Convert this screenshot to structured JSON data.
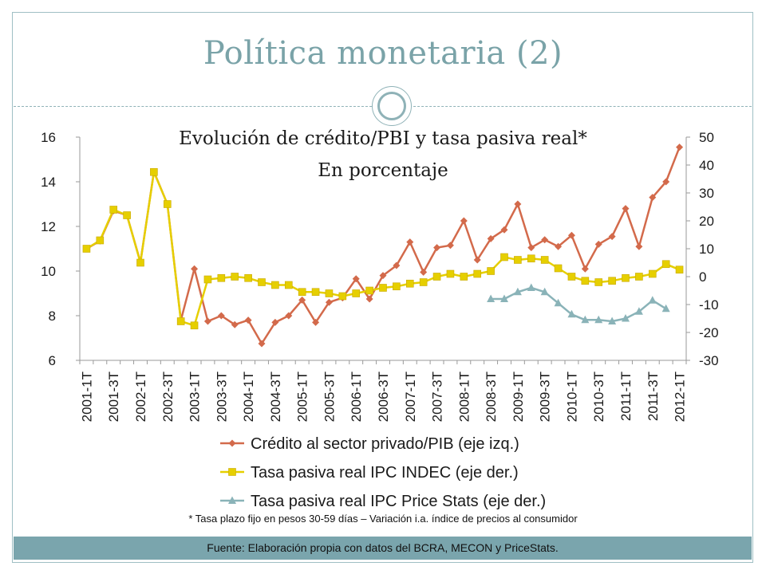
{
  "slide": {
    "title": "Política monetaria (2)",
    "footnote": "* Tasa plazo fijo en pesos 30-59 días – Variación i.a. índice de precios al consumidor",
    "source": "Fuente: Elaboración propia con datos del BCRA, MECON y PriceStats."
  },
  "colors": {
    "credit": "#d36a4b",
    "indec": "#e6cf00",
    "pricestats": "#8ab3b8",
    "accent": "#7aa5ad"
  },
  "chart_data": {
    "type": "line",
    "title": "Evolución de crédito/PBI y tasa pasiva real*",
    "subtitle": "En porcentaje",
    "x": [
      "2001-1T",
      "2001-2T",
      "2001-3T",
      "2001-4T",
      "2002-1T",
      "2002-2T",
      "2002-3T",
      "2002-4T",
      "2003-1T",
      "2003-2T",
      "2003-3T",
      "2003-4T",
      "2004-1T",
      "2004-2T",
      "2004-3T",
      "2004-4T",
      "2005-1T",
      "2005-2T",
      "2005-3T",
      "2005-4T",
      "2006-1T",
      "2006-2T",
      "2006-3T",
      "2006-4T",
      "2007-1T",
      "2007-2T",
      "2007-3T",
      "2007-4T",
      "2008-1T",
      "2008-2T",
      "2008-3T",
      "2008-4T",
      "2009-1T",
      "2009-2T",
      "2009-3T",
      "2009-4T",
      "2010-1T",
      "2010-2T",
      "2010-3T",
      "2010-4T",
      "2011-1T",
      "2011-2T",
      "2011-3T",
      "2011-4T",
      "2012-1T"
    ],
    "x_tick_labels": [
      "2001-1T",
      "2001-3T",
      "2002-1T",
      "2002-3T",
      "2003-1T",
      "2003-3T",
      "2004-1T",
      "2004-3T",
      "2005-1T",
      "2005-3T",
      "2006-1T",
      "2006-3T",
      "2007-1T",
      "2007-3T",
      "2008-1T",
      "2008-3T",
      "2009-1T",
      "2009-3T",
      "2010-1T",
      "2010-3T",
      "2011-1T",
      "2011-3T",
      "2012-1T"
    ],
    "y_left": {
      "ylim": [
        6,
        16
      ],
      "ticks": [
        "6",
        "8",
        "10",
        "12",
        "14",
        "16"
      ]
    },
    "y_right": {
      "ylim": [
        -30,
        50
      ],
      "ticks": [
        "-30",
        "-20",
        "-10",
        "0",
        "10",
        "20",
        "30",
        "40",
        "50"
      ]
    },
    "series": [
      {
        "name": "Crédito al sector privado/PIB (eje izq.)",
        "axis": "left",
        "color": "#d36a4b",
        "marker": "diamond",
        "values": [
          11.0,
          11.35,
          12.7,
          12.5,
          10.4,
          14.45,
          13.0,
          7.8,
          10.1,
          7.75,
          8.0,
          7.6,
          7.8,
          6.75,
          7.7,
          8.0,
          8.7,
          7.7,
          8.6,
          8.8,
          9.65,
          8.75,
          9.8,
          10.25,
          11.3,
          9.95,
          11.05,
          11.15,
          12.25,
          10.5,
          11.45,
          11.85,
          13.0,
          11.05,
          11.4,
          11.1,
          11.6,
          10.1,
          11.2,
          11.55,
          12.8,
          11.1,
          13.3,
          14.0,
          15.55
        ]
      },
      {
        "name": "Tasa pasiva real IPC INDEC (eje der.)",
        "axis": "right",
        "color": "#e6cf00",
        "marker": "square",
        "values": [
          10.0,
          13.0,
          24.0,
          22.0,
          5.0,
          37.5,
          26.0,
          -16.0,
          -17.5,
          -1.0,
          -0.5,
          0.0,
          -0.5,
          -2.0,
          -3.0,
          -3.0,
          -5.5,
          -5.5,
          -6.0,
          -7.0,
          -6.0,
          -5.0,
          -4.0,
          -3.5,
          -2.5,
          -2.0,
          0.0,
          1.0,
          0.0,
          1.0,
          2.0,
          7.0,
          6.0,
          6.5,
          6.0,
          3.0,
          0.0,
          -1.5,
          -2.0,
          -1.5,
          -0.5,
          0.0,
          1.0,
          4.5,
          2.5
        ]
      },
      {
        "name": "Tasa pasiva real IPC Price Stats (eje der.)",
        "axis": "right",
        "color": "#8ab3b8",
        "marker": "triangle",
        "values": [
          null,
          null,
          null,
          null,
          null,
          null,
          null,
          null,
          null,
          null,
          null,
          null,
          null,
          null,
          null,
          null,
          null,
          null,
          null,
          null,
          null,
          null,
          null,
          null,
          null,
          null,
          null,
          null,
          null,
          null,
          -8.0,
          -8.0,
          -5.5,
          -4.0,
          -5.5,
          -9.5,
          -13.5,
          -15.5,
          -15.5,
          -16.0,
          -15.0,
          -12.5,
          -8.5,
          -11.5,
          null
        ]
      }
    ],
    "legend_position": "bottom",
    "grid": false
  }
}
